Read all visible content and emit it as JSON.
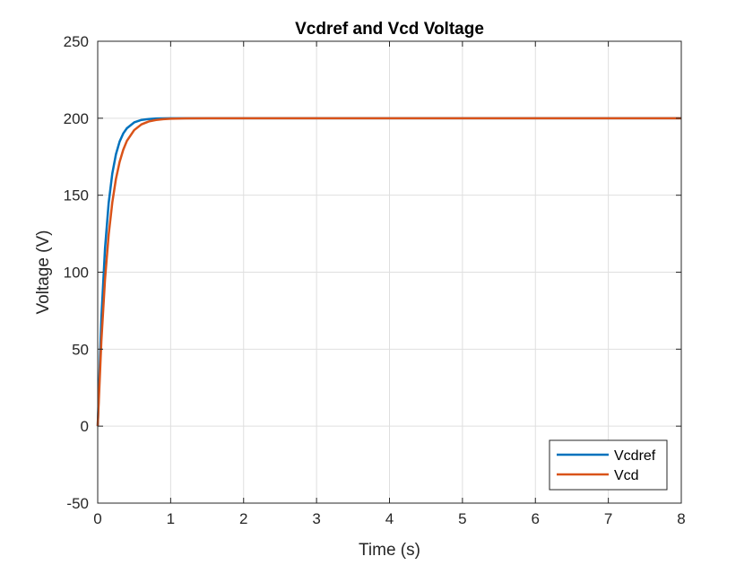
{
  "chart_data": {
    "type": "line",
    "title": "Vcdref and Vcd Voltage",
    "xlabel": "Time (s)",
    "ylabel": "Voltage (V)",
    "xlim": [
      0,
      8
    ],
    "ylim": [
      -50,
      250
    ],
    "xticks": [
      0,
      1,
      2,
      3,
      4,
      5,
      6,
      7,
      8
    ],
    "yticks": [
      -50,
      0,
      50,
      100,
      150,
      200,
      250
    ],
    "grid": true,
    "legend_position": "bottom-right",
    "series": [
      {
        "name": "Vcdref",
        "color": "#0072BD",
        "x": [
          0,
          0.05,
          0.1,
          0.15,
          0.2,
          0.25,
          0.3,
          0.35,
          0.4,
          0.5,
          0.6,
          0.7,
          0.8,
          0.9,
          1.0,
          1.2,
          1.5,
          2,
          3,
          4,
          5,
          6,
          7,
          8
        ],
        "y": [
          0,
          69.9,
          115.3,
          144.9,
          164.1,
          176.6,
          184.8,
          190.1,
          193.5,
          197.3,
          198.9,
          199.5,
          199.8,
          199.9,
          200,
          200,
          200,
          200,
          200,
          200,
          200,
          200,
          200,
          200
        ]
      },
      {
        "name": "Vcd",
        "color": "#D95319",
        "x": [
          0,
          0.05,
          0.1,
          0.15,
          0.2,
          0.25,
          0.3,
          0.35,
          0.4,
          0.5,
          0.6,
          0.7,
          0.8,
          0.9,
          1.0,
          1.2,
          1.5,
          2,
          3,
          4,
          5,
          6,
          7,
          8
        ],
        "y": [
          0,
          55.3,
          95.3,
          124.3,
          145.3,
          160.6,
          171.6,
          179.5,
          185.3,
          192.3,
          196.0,
          197.9,
          198.9,
          199.4,
          199.7,
          199.9,
          200,
          200,
          200,
          200,
          200,
          200,
          200,
          200
        ]
      }
    ]
  }
}
